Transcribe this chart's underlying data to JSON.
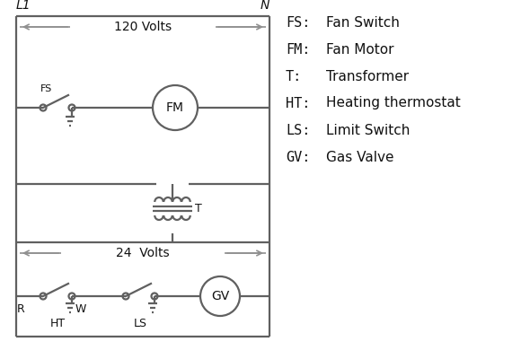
{
  "bg_color": "#ffffff",
  "line_color": "#606060",
  "text_color": "#111111",
  "arrow_color": "#909090",
  "legend_items": [
    [
      "FS:",
      "Fan Switch"
    ],
    [
      "FM:",
      "Fan Motor"
    ],
    [
      "T:",
      "Transformer"
    ],
    [
      "HT:",
      "Heating thermostat"
    ],
    [
      "LS:",
      "Limit Switch"
    ],
    [
      "GV:",
      "Gas Valve"
    ]
  ],
  "L1_label": "L1",
  "N_label": "N",
  "volts120": "120 Volts",
  "volts24": "24  Volts",
  "T_label": "T",
  "R_label": "R",
  "W_label": "W",
  "FS_label": "FS",
  "FM_label": "FM",
  "GV_label": "GV",
  "HT_label": "HT",
  "LS_label": "LS"
}
